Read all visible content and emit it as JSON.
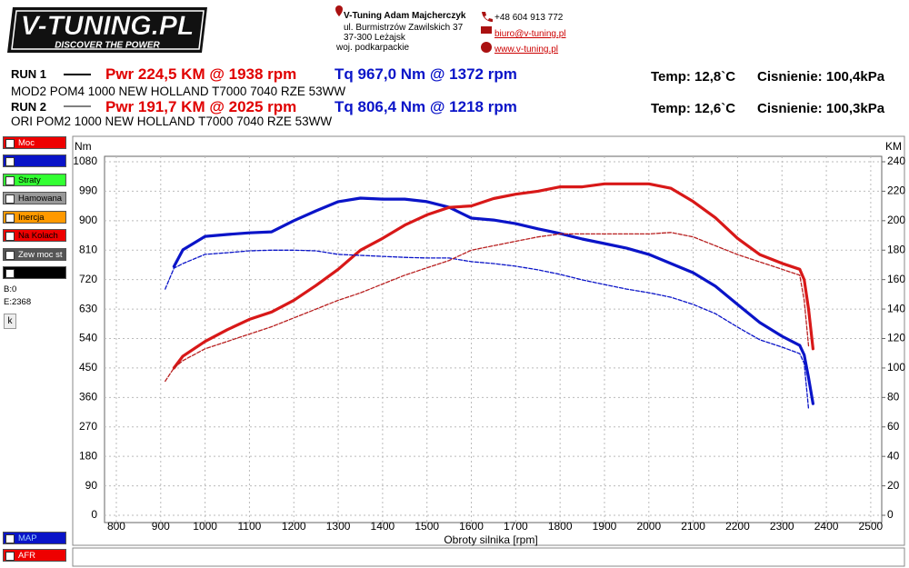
{
  "header": {
    "logo": "V-TUNING.PL",
    "slogan": "DISCOVER THE POWER",
    "company": "V-Tuning Adam Majcherczyk",
    "street": "ul. Burmistrzów Zawilskich 37",
    "city": "37-300 Leżajsk",
    "region": "woj. podkarpackie",
    "phone": "+48 604 913 772",
    "email": "biuro@v-tuning.pl",
    "web": "www.v-tuning.pl"
  },
  "runs": [
    {
      "label": "RUN 1",
      "power": "Pwr  224,5 KM @ 1938 rpm",
      "torque": "Tq 967,0 Nm @ 1372 rpm",
      "temp": "Temp: 12,8`C",
      "pressure": "Cisnienie: 100,4kPa",
      "description": "MOD2 POM4 1000 NEW HOLLAND T7000 7040 RZE 53WW"
    },
    {
      "label": "RUN 2",
      "power": "Pwr  191,7 KM @ 2025 rpm",
      "torque": "Tq 806,4 Nm @ 1218 rpm",
      "temp": "Temp: 12,6`C",
      "pressure": "Cisnienie: 100,3kPa",
      "description": "ORI POM2 1000 NEW HOLLAND T7000 7040 RZE 53WW"
    }
  ],
  "sidebar": {
    "items": [
      "Moc",
      "Straty",
      "Hamowana",
      "Inercja",
      "Na Kolach",
      "Zew moc st"
    ],
    "begin": "B:0",
    "end": "E:2368",
    "button": "k",
    "bottom": [
      "MAP",
      "AFR"
    ]
  },
  "chart_data": {
    "type": "line",
    "ylabel": "Nm",
    "y2label": "KM",
    "xlabel": "Obroty silnika [rpm]",
    "x": [
      910,
      930,
      950,
      1000,
      1050,
      1100,
      1150,
      1200,
      1250,
      1300,
      1350,
      1400,
      1450,
      1500,
      1550,
      1600,
      1650,
      1700,
      1750,
      1800,
      1850,
      1900,
      1950,
      2000,
      2050,
      2100,
      2150,
      2200,
      2250,
      2300,
      2340,
      2350,
      2360,
      2370
    ],
    "series": [
      {
        "color": "#0a14c8",
        "axis": "y",
        "dashed": false,
        "values": [
          null,
          760,
          811,
          852,
          858,
          863,
          866,
          900,
          930,
          958,
          969,
          966,
          966,
          958,
          941,
          908,
          902,
          891,
          875,
          861,
          844,
          830,
          816,
          797,
          769,
          741,
          700,
          644,
          589,
          547,
          519,
          490,
          420,
          341
        ]
      },
      {
        "color": "#d81818",
        "axis": "y2",
        "dashed": false,
        "values": [
          null,
          100,
          108,
          118,
          126,
          133,
          138,
          146,
          156,
          167,
          180,
          188,
          197,
          204,
          209,
          210,
          215,
          218,
          220,
          223,
          223,
          225,
          225,
          225,
          222,
          213,
          202,
          188,
          177,
          171,
          167,
          160,
          140,
          113
        ]
      },
      {
        "color": "#0a14c8",
        "axis": "y",
        "dashed": true,
        "values": [
          691,
          755,
          769,
          797,
          802,
          808,
          810,
          810,
          808,
          797,
          794,
          791,
          788,
          786,
          786,
          775,
          769,
          761,
          750,
          736,
          719,
          705,
          691,
          680,
          666,
          644,
          616,
          575,
          536,
          514,
          494,
          464,
          325,
          null
        ]
      },
      {
        "color": "#b82020",
        "axis": "y2",
        "dashed": true,
        "values": [
          91,
          100,
          105,
          113,
          118,
          123,
          128,
          134,
          140,
          146,
          151,
          157,
          163,
          168,
          173,
          180,
          183,
          186,
          189,
          191,
          191,
          191,
          191,
          191,
          192,
          189,
          183,
          177,
          172,
          167,
          163,
          146,
          115,
          null
        ]
      }
    ],
    "xlim": [
      773,
      2525
    ],
    "xticks": [
      800,
      900,
      1000,
      1100,
      1200,
      1300,
      1400,
      1500,
      1600,
      1700,
      1800,
      1900,
      2000,
      2100,
      2200,
      2300,
      2400,
      2500
    ],
    "ylim": [
      0,
      1080
    ],
    "yticks": [
      0,
      90,
      180,
      270,
      360,
      450,
      540,
      630,
      720,
      810,
      900,
      990,
      1080
    ],
    "y2lim": [
      0,
      240
    ],
    "y2ticks": [
      0,
      20,
      40,
      60,
      80,
      100,
      120,
      140,
      160,
      180,
      200,
      220,
      240
    ],
    "grid": true
  }
}
